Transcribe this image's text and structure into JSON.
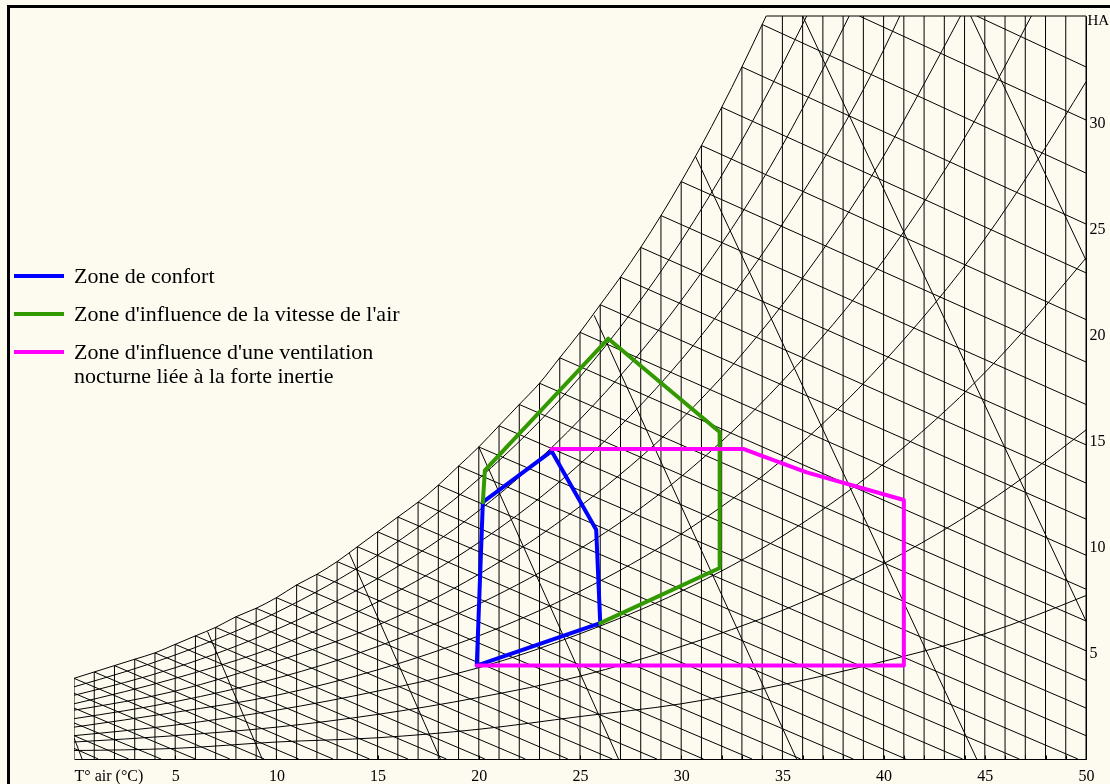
{
  "chart_data": {
    "type": "line",
    "xlabel": "T° air (°C)",
    "ylabel": "HA",
    "xlim": [
      0,
      50
    ],
    "ylim": [
      0,
      35
    ],
    "xticks": [
      5,
      10,
      15,
      20,
      25,
      30,
      {
        "value": 31,
        "label": null
      },
      {
        "value": 32,
        "label": null
      },
      {
        "value": 33,
        "label": null
      },
      {
        "value": 34,
        "label": null
      },
      35,
      {
        "value": 36,
        "label": null
      },
      {
        "value": 37,
        "label": null
      },
      {
        "value": 38,
        "label": null
      },
      {
        "value": 39,
        "label": null
      },
      40,
      {
        "value": 41,
        "label": null
      },
      {
        "value": 42,
        "label": null
      },
      {
        "value": 43,
        "label": null
      },
      {
        "value": 44,
        "label": null
      },
      45,
      {
        "value": 46,
        "label": null
      },
      {
        "value": 47,
        "label": null
      },
      {
        "value": 48,
        "label": null
      },
      {
        "value": 49,
        "label": null
      },
      50
    ],
    "yticks": [
      5,
      10,
      15,
      20,
      25,
      30
    ],
    "grid": "x",
    "legend": "left",
    "series": [
      {
        "color": "#000000",
        "x": [
          0,
          1,
          2,
          3,
          4,
          5,
          6,
          7,
          8,
          9,
          10,
          11,
          12,
          13,
          14,
          15,
          16,
          17,
          18,
          19,
          20,
          21,
          22,
          23,
          24,
          25,
          26,
          27,
          28,
          29,
          30,
          31,
          32,
          33,
          34,
          34.2
        ],
        "values": [
          3.8,
          4.1,
          4.4,
          4.7,
          5.0,
          5.4,
          5.8,
          6.2,
          6.7,
          7.1,
          7.6,
          8.2,
          8.7,
          9.3,
          10.0,
          10.7,
          11.4,
          12.1,
          12.9,
          13.8,
          14.7,
          15.7,
          16.7,
          17.7,
          18.9,
          20.1,
          21.4,
          22.7,
          24.1,
          25.6,
          27.2,
          28.9,
          30.7,
          32.6,
          34.6,
          35
        ]
      },
      {
        "color": "#000000",
        "x": [
          0,
          5,
          10,
          15,
          20,
          25,
          30,
          35,
          36.2
        ],
        "values": [
          3.4,
          4.9,
          6.9,
          9.6,
          13.2,
          18.0,
          24.4,
          32.7,
          35
        ]
      },
      {
        "color": "#000000",
        "x": [
          0,
          5,
          10,
          15,
          20,
          25,
          30,
          35,
          37,
          38.3
        ],
        "values": [
          3.0,
          4.3,
          6.1,
          8.5,
          11.7,
          16.0,
          21.6,
          28.9,
          32.5,
          35
        ]
      },
      {
        "color": "#000000",
        "x": [
          0,
          5,
          10,
          15,
          20,
          25,
          30,
          35,
          40,
          40.8
        ],
        "values": [
          2.6,
          3.8,
          5.3,
          7.4,
          10.2,
          13.9,
          18.8,
          25.2,
          33.4,
          35
        ]
      },
      {
        "color": "#000000",
        "x": [
          0,
          5,
          10,
          15,
          20,
          25,
          30,
          35,
          40,
          42,
          43.8
        ],
        "values": [
          2.3,
          3.2,
          4.6,
          6.3,
          8.7,
          11.9,
          16.0,
          21.4,
          28.4,
          31.8,
          35
        ]
      },
      {
        "color": "#000000",
        "x": [
          0,
          5,
          10,
          15,
          20,
          25,
          30,
          35,
          40,
          45,
          47.3
        ],
        "values": [
          1.9,
          2.7,
          3.8,
          5.3,
          7.3,
          9.9,
          13.3,
          17.8,
          23.5,
          30.9,
          35
        ]
      },
      {
        "color": "#000000",
        "x": [
          0,
          5,
          10,
          15,
          20,
          25,
          30,
          35,
          40,
          45,
          50
        ],
        "values": [
          1.5,
          2.2,
          3.0,
          4.2,
          5.8,
          7.9,
          10.6,
          14.1,
          18.7,
          24.5,
          31.9
        ]
      },
      {
        "color": "#000000",
        "x": [
          0,
          5,
          10,
          15,
          20,
          25,
          30,
          35,
          40,
          45,
          50
        ],
        "values": [
          1.1,
          1.6,
          2.3,
          3.2,
          4.3,
          5.9,
          7.9,
          10.5,
          13.9,
          18.2,
          23.6
        ]
      },
      {
        "color": "#000000",
        "x": [
          0,
          5,
          10,
          15,
          20,
          25,
          30,
          35,
          40,
          45,
          50
        ],
        "values": [
          0.8,
          1.1,
          1.5,
          2.1,
          2.9,
          3.9,
          5.3,
          7.0,
          9.2,
          12.0,
          15.5
        ]
      },
      {
        "color": "#000000",
        "x": [
          0,
          5,
          10,
          15,
          20,
          25,
          30,
          35,
          40,
          45,
          50
        ],
        "values": [
          0.4,
          0.5,
          0.8,
          1.0,
          1.4,
          2.0,
          2.6,
          3.5,
          4.6,
          5.9,
          7.7
        ]
      },
      {
        "color": "#000000",
        "x": [
          0,
          1.2
        ],
        "values": [
          0.5,
          0
        ]
      },
      {
        "color": "#000000",
        "x": [
          0,
          2.7
        ],
        "values": [
          1.1,
          0
        ]
      },
      {
        "color": "#000000",
        "x": [
          0,
          4.3
        ],
        "values": [
          1.7,
          0
        ]
      },
      {
        "color": "#000000",
        "x": [
          0,
          6.0
        ],
        "values": [
          2.4,
          0
        ]
      },
      {
        "color": "#000000",
        "x": [
          0,
          7.7
        ],
        "values": [
          3.1,
          0
        ]
      },
      {
        "color": "#000000",
        "x": [
          0,
          9.4
        ],
        "values": [
          3.8,
          0
        ]
      },
      {
        "color": "#000000",
        "x": [
          1,
          11.1
        ],
        "values": [
          4.1,
          0
        ]
      },
      {
        "color": "#000000",
        "x": [
          2,
          12.8
        ],
        "values": [
          4.4,
          0
        ]
      },
      {
        "color": "#000000",
        "x": [
          3,
          14.6
        ],
        "values": [
          4.7,
          0
        ]
      },
      {
        "color": "#000000",
        "x": [
          4,
          16.5
        ],
        "values": [
          5.0,
          0
        ]
      },
      {
        "color": "#000000",
        "x": [
          5,
          18.4
        ],
        "values": [
          5.4,
          0
        ]
      },
      {
        "color": "#000000",
        "x": [
          6,
          20.3
        ],
        "values": [
          5.8,
          0
        ]
      },
      {
        "color": "#000000",
        "x": [
          7,
          22.3
        ],
        "values": [
          6.2,
          0
        ]
      },
      {
        "color": "#000000",
        "x": [
          8,
          24.4
        ],
        "values": [
          6.7,
          0
        ]
      },
      {
        "color": "#000000",
        "x": [
          9,
          26.6
        ],
        "values": [
          7.1,
          0
        ]
      },
      {
        "color": "#000000",
        "x": [
          10,
          28.8
        ],
        "values": [
          7.6,
          0
        ]
      },
      {
        "color": "#000000",
        "x": [
          11,
          31.1
        ],
        "values": [
          8.2,
          0
        ]
      },
      {
        "color": "#000000",
        "x": [
          12,
          33.5
        ],
        "values": [
          8.7,
          0
        ]
      },
      {
        "color": "#000000",
        "x": [
          13,
          35.9
        ],
        "values": [
          9.3,
          0
        ]
      },
      {
        "color": "#000000",
        "x": [
          14,
          38.5
        ],
        "values": [
          10.0,
          0
        ]
      },
      {
        "color": "#000000",
        "x": [
          15,
          41.1
        ],
        "values": [
          10.7,
          0
        ]
      },
      {
        "color": "#000000",
        "x": [
          16,
          43.9
        ],
        "values": [
          11.4,
          0
        ]
      },
      {
        "color": "#000000",
        "x": [
          17,
          46.7
        ],
        "values": [
          12.1,
          0
        ]
      },
      {
        "color": "#000000",
        "x": [
          18,
          49.6
        ],
        "values": [
          12.9,
          0
        ]
      },
      {
        "color": "#000000",
        "x": [
          19,
          50
        ],
        "values": [
          13.8,
          1.1
        ]
      },
      {
        "color": "#000000",
        "x": [
          20,
          50
        ],
        "values": [
          14.7,
          2.4
        ]
      },
      {
        "color": "#000000",
        "x": [
          21,
          50
        ],
        "values": [
          15.7,
          3.7
        ]
      },
      {
        "color": "#000000",
        "x": [
          22,
          50
        ],
        "values": [
          16.7,
          5.1
        ]
      },
      {
        "color": "#000000",
        "x": [
          23,
          50
        ],
        "values": [
          17.7,
          6.5
        ]
      },
      {
        "color": "#000000",
        "x": [
          24,
          50
        ],
        "values": [
          18.9,
          8.0
        ]
      },
      {
        "color": "#000000",
        "x": [
          25,
          50
        ],
        "values": [
          20.1,
          9.6
        ]
      },
      {
        "color": "#000000",
        "x": [
          26,
          50
        ],
        "values": [
          21.4,
          11.3
        ]
      },
      {
        "color": "#000000",
        "x": [
          27,
          50
        ],
        "values": [
          22.7,
          13.0
        ]
      },
      {
        "color": "#000000",
        "x": [
          28,
          50
        ],
        "values": [
          24.1,
          14.8
        ]
      },
      {
        "color": "#000000",
        "x": [
          29,
          50
        ],
        "values": [
          25.6,
          16.7
        ]
      },
      {
        "color": "#000000",
        "x": [
          30,
          50
        ],
        "values": [
          27.2,
          18.7
        ]
      },
      {
        "color": "#000000",
        "x": [
          31,
          50
        ],
        "values": [
          28.9,
          20.7
        ]
      },
      {
        "color": "#000000",
        "x": [
          32,
          50
        ],
        "values": [
          30.7,
          22.9
        ]
      },
      {
        "color": "#000000",
        "x": [
          33,
          50
        ],
        "values": [
          32.6,
          25.2
        ]
      },
      {
        "color": "#000000",
        "x": [
          34,
          50
        ],
        "values": [
          34.6,
          27.6
        ]
      },
      {
        "color": "#000000",
        "x": [
          38.8,
          50
        ],
        "values": [
          35,
          30.1
        ]
      },
      {
        "color": "#000000",
        "x": [
          44.6,
          50
        ],
        "values": [
          35,
          32.6
        ]
      },
      {
        "color": "#000000",
        "x": [
          0,
          0.4
        ],
        "values": [
          1.0,
          0
        ]
      },
      {
        "color": "#000000",
        "x": [
          6.6,
          9.3
        ],
        "values": [
          6.0,
          0
        ]
      },
      {
        "color": "#000000",
        "x": [
          13.6,
          18.1
        ],
        "values": [
          9.7,
          0
        ]
      },
      {
        "color": "#000000",
        "x": [
          20.0,
          26.9
        ],
        "values": [
          14.7,
          0
        ]
      },
      {
        "color": "#000000",
        "x": [
          25.7,
          35.7
        ],
        "values": [
          20.9,
          0
        ]
      },
      {
        "color": "#000000",
        "x": [
          30.7,
          44.6
        ],
        "values": [
          28.4,
          0
        ]
      },
      {
        "color": "#000000",
        "x": [
          36.0,
          50
        ],
        "values": [
          35,
          6.5
        ]
      },
      {
        "color": "#000000",
        "x": [
          44.3,
          50
        ],
        "values": [
          35,
          23.5
        ]
      },
      {
        "color": "#000000",
        "x": [
          0,
          0
        ],
        "values": [
          0,
          3.8
        ]
      },
      {
        "color": "#000000",
        "x": [
          1,
          1
        ],
        "values": [
          0,
          4.1
        ]
      },
      {
        "color": "#000000",
        "x": [
          2,
          2
        ],
        "values": [
          0,
          4.4
        ]
      },
      {
        "color": "#000000",
        "x": [
          3,
          3
        ],
        "values": [
          0,
          4.7
        ]
      },
      {
        "color": "#000000",
        "x": [
          4,
          4
        ],
        "values": [
          0,
          5.0
        ]
      },
      {
        "color": "#000000",
        "x": [
          5,
          5
        ],
        "values": [
          0,
          5.4
        ]
      },
      {
        "color": "#000000",
        "x": [
          6,
          6
        ],
        "values": [
          0,
          5.8
        ]
      },
      {
        "color": "#000000",
        "x": [
          7,
          7
        ],
        "values": [
          0,
          6.2
        ]
      },
      {
        "color": "#000000",
        "x": [
          8,
          8
        ],
        "values": [
          0,
          6.7
        ]
      },
      {
        "color": "#000000",
        "x": [
          9,
          9
        ],
        "values": [
          0,
          7.1
        ]
      },
      {
        "color": "#000000",
        "x": [
          10,
          10
        ],
        "values": [
          0,
          7.6
        ]
      },
      {
        "color": "#000000",
        "x": [
          11,
          11
        ],
        "values": [
          0,
          8.2
        ]
      },
      {
        "color": "#000000",
        "x": [
          12,
          12
        ],
        "values": [
          0,
          8.7
        ]
      },
      {
        "color": "#000000",
        "x": [
          13,
          13
        ],
        "values": [
          0,
          9.3
        ]
      },
      {
        "color": "#000000",
        "x": [
          14,
          14
        ],
        "values": [
          0,
          10.0
        ]
      },
      {
        "color": "#000000",
        "x": [
          15,
          15
        ],
        "values": [
          0,
          10.7
        ]
      },
      {
        "color": "#000000",
        "x": [
          16,
          16
        ],
        "values": [
          0,
          11.4
        ]
      },
      {
        "color": "#000000",
        "x": [
          17,
          17
        ],
        "values": [
          0,
          12.1
        ]
      },
      {
        "color": "#000000",
        "x": [
          18,
          18
        ],
        "values": [
          0,
          12.9
        ]
      },
      {
        "color": "#000000",
        "x": [
          19,
          19
        ],
        "values": [
          0,
          13.8
        ]
      },
      {
        "color": "#000000",
        "x": [
          20,
          20
        ],
        "values": [
          0,
          14.7
        ]
      },
      {
        "color": "#000000",
        "x": [
          21,
          21
        ],
        "values": [
          0,
          15.7
        ]
      },
      {
        "color": "#000000",
        "x": [
          22,
          22
        ],
        "values": [
          0,
          16.7
        ]
      },
      {
        "color": "#000000",
        "x": [
          23,
          23
        ],
        "values": [
          0,
          17.7
        ]
      },
      {
        "color": "#000000",
        "x": [
          24,
          24
        ],
        "values": [
          0,
          18.9
        ]
      },
      {
        "color": "#000000",
        "x": [
          25,
          25
        ],
        "values": [
          0,
          20.1
        ]
      },
      {
        "color": "#000000",
        "x": [
          26,
          26
        ],
        "values": [
          0,
          21.4
        ]
      },
      {
        "color": "#000000",
        "x": [
          27,
          27
        ],
        "values": [
          0,
          22.7
        ]
      },
      {
        "color": "#000000",
        "x": [
          28,
          28
        ],
        "values": [
          0,
          24.1
        ]
      },
      {
        "color": "#000000",
        "x": [
          29,
          29
        ],
        "values": [
          0,
          25.6
        ]
      },
      {
        "name": "Zone de confort",
        "color": "#0000ff",
        "x": [
          26.0,
          19.9,
          20.2,
          23.6,
          25.8,
          26.0,
          19.9
        ],
        "values": [
          6.4,
          4.4,
          12.1,
          14.5,
          10.8,
          6.4,
          4.4
        ]
      },
      {
        "name": "Zone d'influence de la vitesse de l'air",
        "color": "#339900",
        "x": [
          26.0,
          31.9,
          31.9,
          26.4,
          20.3,
          20.2
        ],
        "values": [
          6.4,
          9.0,
          15.4,
          19.8,
          13.6,
          12.1
        ]
      },
      {
        "name": "Zone d'influence d'une ventilation nocturne liée à la forte inertie",
        "color": "#ff00ff",
        "x": [
          23.6,
          33.1,
          36.2,
          41.0,
          41.0,
          19.9
        ],
        "values": [
          14.6,
          14.6,
          13.5,
          12.2,
          4.4,
          4.4
        ]
      }
    ]
  }
}
